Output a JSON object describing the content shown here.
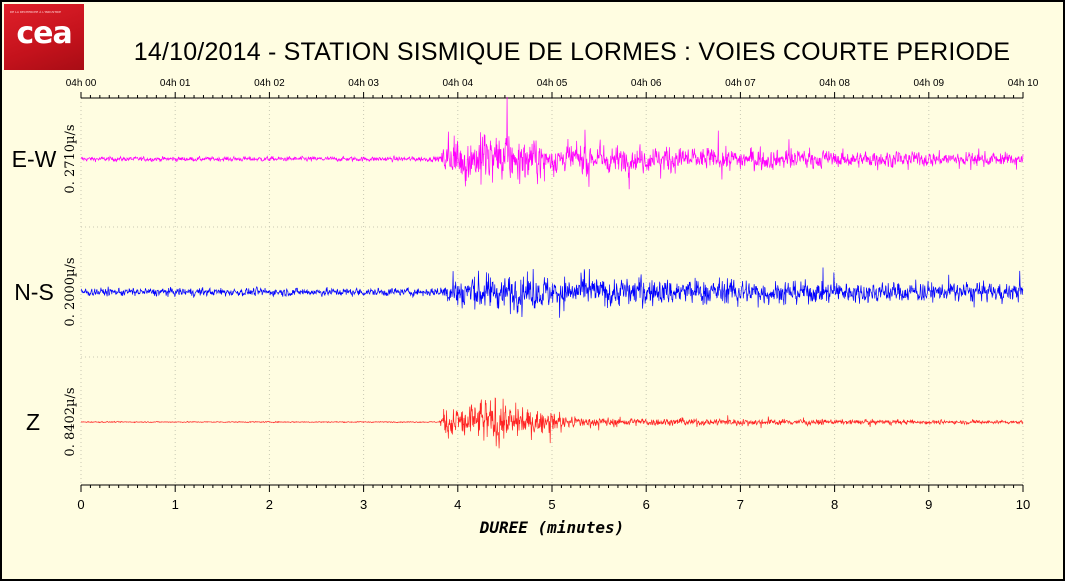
{
  "logo": {
    "text": "cea",
    "tagline": "DE LA RECHERCHE À L'INDUSTRIE"
  },
  "chart_data": {
    "type": "line",
    "title": "14/10/2014  -  STATION SISMIQUE DE LORMES : VOIES COURTE PERIODE",
    "xlabel": "DUREE (minutes)",
    "xlim": [
      0,
      10
    ],
    "x_ticks": [
      "0",
      "1",
      "2",
      "3",
      "4",
      "5",
      "6",
      "7",
      "8",
      "9",
      "10"
    ],
    "top_ticks": [
      "04h 00",
      "04h 01",
      "04h 02",
      "04h 03",
      "04h 04",
      "04h 05",
      "04h 06",
      "04h 07",
      "04h 08",
      "04h 09",
      "04h 10"
    ],
    "grid": true,
    "series": [
      {
        "name": "E-W",
        "scale": "0. 2710µ/s",
        "color": "#ff00ff",
        "onset_min": 3.85,
        "peak_min": 4.35,
        "envelope": {
          "t": [
            0,
            3.8,
            3.85,
            4.0,
            4.35,
            4.7,
            5.0,
            6.0,
            7.0,
            8.0,
            10.0
          ],
          "amp": [
            0.09,
            0.1,
            0.45,
            0.9,
            1.0,
            0.8,
            0.6,
            0.5,
            0.42,
            0.32,
            0.25
          ]
        }
      },
      {
        "name": "N-S",
        "scale": "0. 2000µ/s",
        "color": "#0000ff",
        "onset_min": 3.85,
        "peak_min": 4.1,
        "envelope": {
          "t": [
            0,
            3.8,
            3.85,
            4.0,
            4.1,
            4.5,
            5.0,
            6.0,
            7.0,
            8.0,
            10.0
          ],
          "amp": [
            0.16,
            0.16,
            0.35,
            0.7,
            0.75,
            0.7,
            0.62,
            0.55,
            0.5,
            0.42,
            0.35
          ]
        }
      },
      {
        "name": "Z",
        "scale": "0. 8402µ/s",
        "color": "#ff2222",
        "onset_min": 3.85,
        "peak_min": 4.35,
        "envelope": {
          "t": [
            0,
            3.8,
            3.85,
            4.0,
            4.35,
            4.6,
            4.9,
            5.2,
            6.0,
            7.0,
            8.0,
            10.0
          ],
          "amp": [
            0.02,
            0.02,
            0.5,
            0.7,
            1.0,
            0.6,
            0.45,
            0.2,
            0.15,
            0.13,
            0.1,
            0.07
          ]
        }
      }
    ]
  }
}
